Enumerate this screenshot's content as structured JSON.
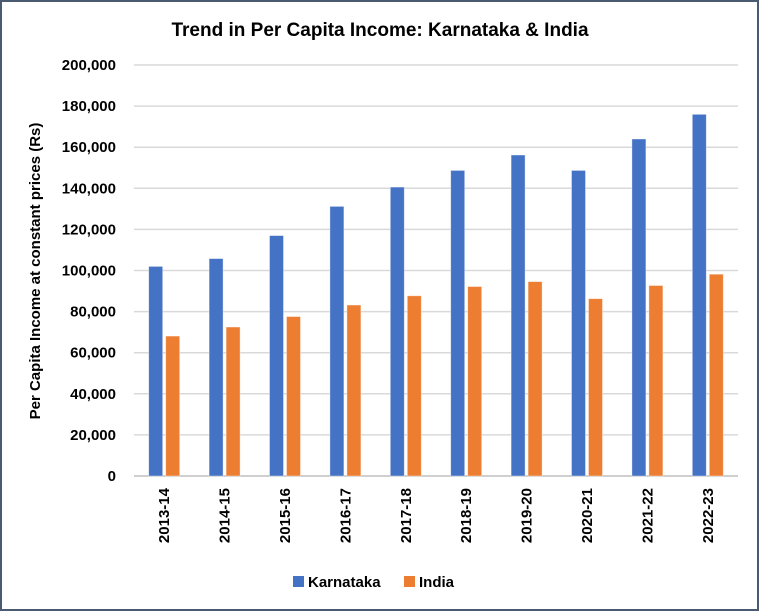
{
  "chart_data": {
    "type": "bar",
    "title": "Trend in Per Capita Income: Karnataka & India",
    "xlabel": "",
    "ylabel": "Per Capita Income at constant prices (Rs)",
    "ylim": [
      0,
      200000
    ],
    "yticks": [
      0,
      20000,
      40000,
      60000,
      80000,
      100000,
      120000,
      140000,
      160000,
      180000,
      200000
    ],
    "ytick_labels": [
      "0",
      "20,000",
      "40,000",
      "60,000",
      "80,000",
      "100,000",
      "120,000",
      "140,000",
      "160,000",
      "180,000",
      "200,000"
    ],
    "grid": true,
    "legend_position": "bottom",
    "categories": [
      "2013-14",
      "2014-15",
      "2015-16",
      "2016-17",
      "2017-18",
      "2018-19",
      "2019-20",
      "2020-21",
      "2021-22",
      "2022-23"
    ],
    "series": [
      {
        "name": "Karnataka",
        "color": "#4472c4",
        "values": [
          102000,
          105800,
          117000,
          131200,
          140600,
          148700,
          156200,
          148700,
          164000,
          176000
        ]
      },
      {
        "name": "India",
        "color": "#ed7d31",
        "values": [
          68100,
          72500,
          77600,
          83200,
          87700,
          92200,
          94600,
          86300,
          92700,
          98200
        ]
      }
    ]
  }
}
